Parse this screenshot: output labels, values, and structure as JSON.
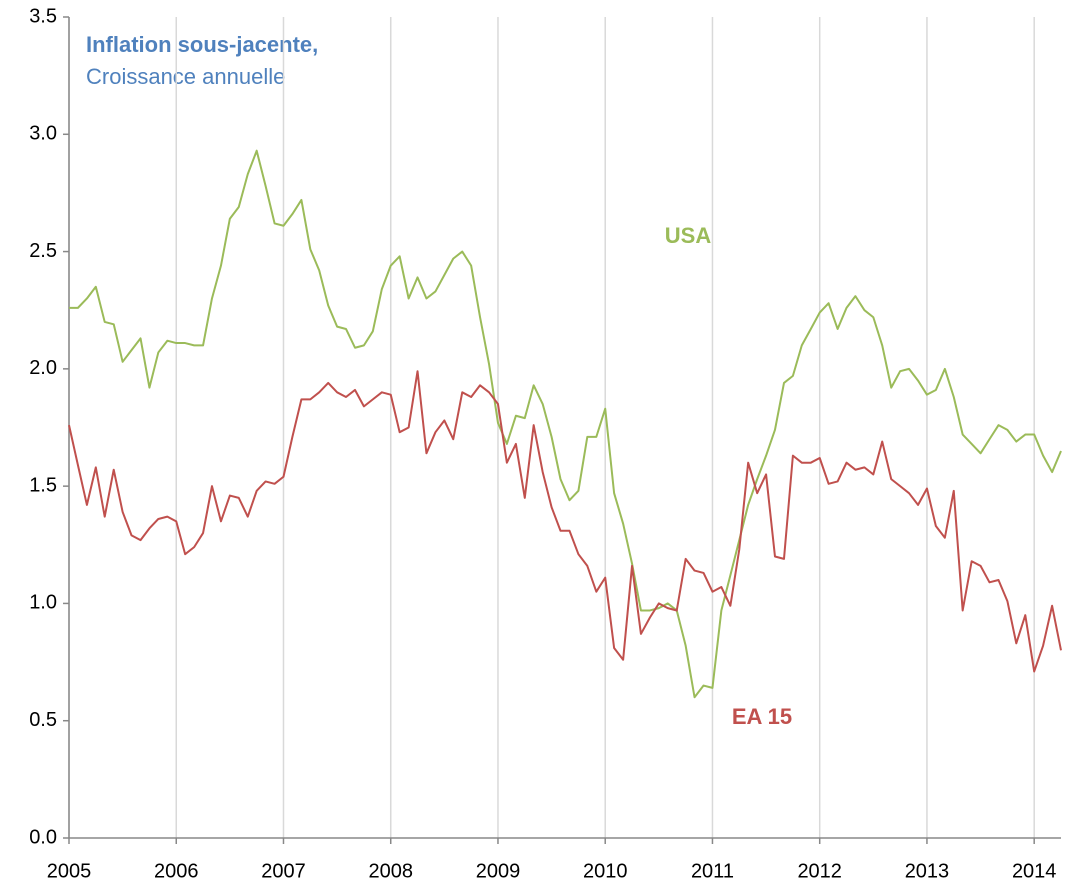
{
  "chart_data": {
    "type": "line",
    "title": "Inflation sous-jacente,",
    "subtitle": "Croissance annuelle",
    "x": [
      2005,
      2005.083,
      2005.167,
      2005.25,
      2005.333,
      2005.417,
      2005.5,
      2005.583,
      2005.667,
      2005.75,
      2005.833,
      2005.917,
      2006,
      2006.083,
      2006.167,
      2006.25,
      2006.333,
      2006.417,
      2006.5,
      2006.583,
      2006.667,
      2006.75,
      2006.833,
      2006.917,
      2007,
      2007.083,
      2007.167,
      2007.25,
      2007.333,
      2007.417,
      2007.5,
      2007.583,
      2007.667,
      2007.75,
      2007.833,
      2007.917,
      2008,
      2008.083,
      2008.167,
      2008.25,
      2008.333,
      2008.417,
      2008.5,
      2008.583,
      2008.667,
      2008.75,
      2008.833,
      2008.917,
      2009,
      2009.083,
      2009.167,
      2009.25,
      2009.333,
      2009.417,
      2009.5,
      2009.583,
      2009.667,
      2009.75,
      2009.833,
      2009.917,
      2010,
      2010.083,
      2010.167,
      2010.25,
      2010.333,
      2010.417,
      2010.5,
      2010.583,
      2010.667,
      2010.75,
      2010.833,
      2010.917,
      2011,
      2011.083,
      2011.167,
      2011.25,
      2011.333,
      2011.417,
      2011.5,
      2011.583,
      2011.667,
      2011.75,
      2011.833,
      2011.917,
      2012,
      2012.083,
      2012.167,
      2012.25,
      2012.333,
      2012.417,
      2012.5,
      2012.583,
      2012.667,
      2012.75,
      2012.833,
      2012.917,
      2013,
      2013.083,
      2013.167,
      2013.25,
      2013.333,
      2013.417,
      2013.5,
      2013.583,
      2013.667,
      2013.75,
      2013.833,
      2013.917,
      2014,
      2014.083,
      2014.167,
      2014.25
    ],
    "series": [
      {
        "name": "USA",
        "color": "#9bbb59",
        "values": [
          2.26,
          2.26,
          2.3,
          2.35,
          2.2,
          2.19,
          2.03,
          2.08,
          2.13,
          1.92,
          2.07,
          2.12,
          2.11,
          2.11,
          2.1,
          2.1,
          2.3,
          2.44,
          2.64,
          2.69,
          2.83,
          2.93,
          2.78,
          2.62,
          2.61,
          2.66,
          2.72,
          2.51,
          2.42,
          2.27,
          2.18,
          2.17,
          2.09,
          2.1,
          2.16,
          2.34,
          2.44,
          2.48,
          2.3,
          2.39,
          2.3,
          2.33,
          2.4,
          2.47,
          2.5,
          2.44,
          2.22,
          2.02,
          1.77,
          1.68,
          1.8,
          1.79,
          1.93,
          1.85,
          1.71,
          1.53,
          1.44,
          1.48,
          1.71,
          1.71,
          1.83,
          1.47,
          1.34,
          1.17,
          0.97,
          0.97,
          0.98,
          1.0,
          0.97,
          0.82,
          0.6,
          0.65,
          0.64,
          0.97,
          1.12,
          1.27,
          1.42,
          1.53,
          1.63,
          1.74,
          1.94,
          1.97,
          2.1,
          2.17,
          2.24,
          2.28,
          2.17,
          2.26,
          2.31,
          2.25,
          2.22,
          2.1,
          1.92,
          1.99,
          2.0,
          1.95,
          1.89,
          1.91,
          2.0,
          1.88,
          1.72,
          1.68,
          1.64,
          1.7,
          1.76,
          1.74,
          1.69,
          1.72,
          1.72,
          1.63,
          1.56,
          1.65
        ]
      },
      {
        "name": "EA 15",
        "color": "#c0504d",
        "values": [
          1.76,
          1.59,
          1.42,
          1.58,
          1.37,
          1.57,
          1.39,
          1.29,
          1.27,
          1.32,
          1.36,
          1.37,
          1.35,
          1.21,
          1.24,
          1.3,
          1.5,
          1.35,
          1.46,
          1.45,
          1.37,
          1.48,
          1.52,
          1.51,
          1.54,
          1.71,
          1.87,
          1.87,
          1.9,
          1.94,
          1.9,
          1.88,
          1.91,
          1.84,
          1.87,
          1.9,
          1.89,
          1.73,
          1.75,
          1.99,
          1.64,
          1.73,
          1.78,
          1.7,
          1.9,
          1.88,
          1.93,
          1.9,
          1.85,
          1.6,
          1.68,
          1.45,
          1.76,
          1.56,
          1.41,
          1.31,
          1.31,
          1.21,
          1.16,
          1.05,
          1.11,
          0.81,
          0.76,
          1.16,
          0.87,
          0.94,
          1.0,
          0.98,
          0.97,
          1.19,
          1.14,
          1.13,
          1.05,
          1.07,
          0.99,
          1.23,
          1.6,
          1.47,
          1.55,
          1.2,
          1.19,
          1.63,
          1.6,
          1.6,
          1.62,
          1.51,
          1.52,
          1.6,
          1.57,
          1.58,
          1.55,
          1.69,
          1.53,
          1.5,
          1.47,
          1.42,
          1.49,
          1.33,
          1.28,
          1.48,
          0.97,
          1.18,
          1.16,
          1.09,
          1.1,
          1.01,
          0.83,
          0.95,
          0.71,
          0.82,
          0.99,
          0.8
        ]
      }
    ],
    "xlim": [
      2005,
      2014.25
    ],
    "xticks": [
      2005,
      2006,
      2007,
      2008,
      2009,
      2010,
      2011,
      2012,
      2013,
      2014
    ],
    "ylim": [
      0,
      3.5
    ],
    "yticks": [
      {
        "value": 0,
        "label": "0.0"
      },
      0.5,
      {
        "value": 1,
        "label": "1.0"
      },
      1.5,
      {
        "value": 2,
        "label": "2.0"
      },
      2.5,
      {
        "value": 3,
        "label": "3.0"
      },
      3.5
    ],
    "grid": "x"
  }
}
